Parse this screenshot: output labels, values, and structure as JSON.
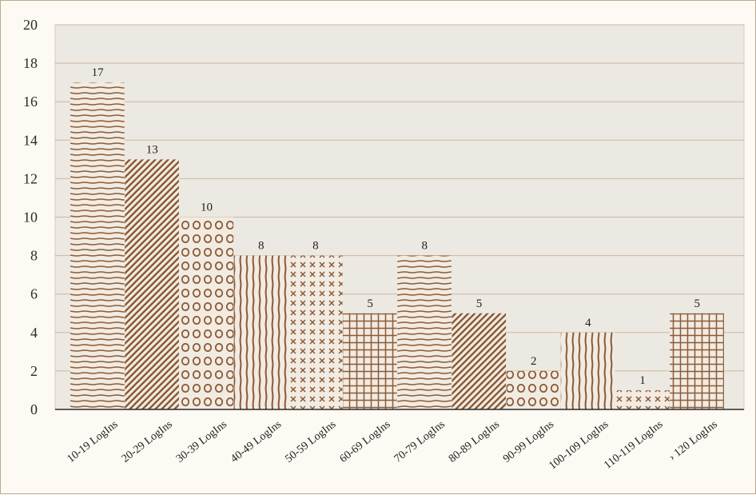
{
  "chart_data": {
    "type": "bar",
    "categories": [
      "10-19 LogIns",
      "20-29 LogIns",
      "30-39 LogIns",
      "40-49 LogIns",
      "50-59 LogIns",
      "60-69 LogIns",
      "70-79 LogIns",
      "80-89 LogIns",
      "90-99 LogIns",
      "100-109 LogIns",
      "110-119 LogIns",
      "› 120 LogIns"
    ],
    "values": [
      17,
      13,
      10,
      8,
      8,
      5,
      8,
      5,
      2,
      4,
      1,
      5
    ],
    "data_labels": [
      "17",
      "13",
      "10",
      "8",
      "8",
      "5",
      "8",
      "5",
      "2",
      "4",
      "1",
      "5"
    ],
    "patterns": [
      "horizontal-lines",
      "diagonal-lines",
      "circles",
      "vertical-lines",
      "crosses",
      "grid",
      "horizontal-lines",
      "diagonal-lines",
      "circles",
      "vertical-lines",
      "crosses",
      "grid"
    ],
    "ylim": [
      0,
      20
    ],
    "yticks": [
      0,
      2,
      4,
      6,
      8,
      10,
      12,
      14,
      16,
      18,
      20
    ],
    "ytick_labels": [
      "0",
      "2",
      "4",
      "6",
      "8",
      "10",
      "12",
      "14",
      "16",
      "18",
      "20"
    ],
    "grid": true,
    "legend": "none",
    "title": "",
    "xlabel": "",
    "ylabel": "",
    "colors": {
      "plot_background": "#ece9e2",
      "gridline": "#cdb89c",
      "bar_fill": "#f1ebe2",
      "pattern_ink": "#8b5a35",
      "axis": "#2b2b2b"
    }
  }
}
